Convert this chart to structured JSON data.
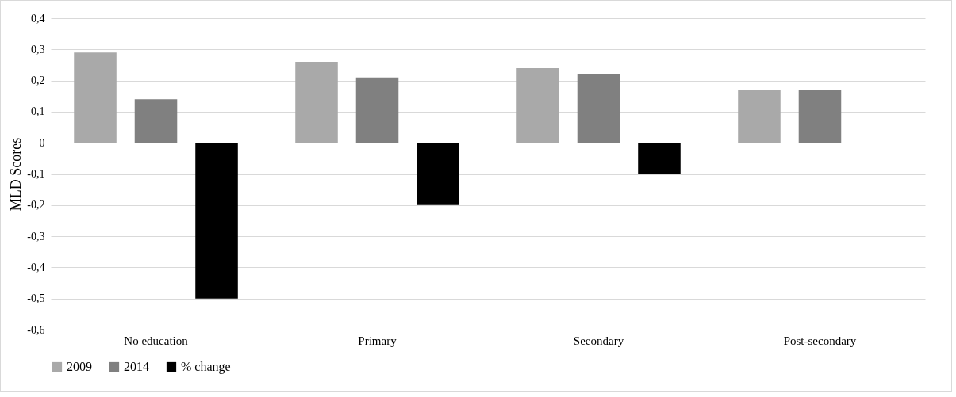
{
  "chart_data": {
    "type": "bar",
    "ylabel": "MLD Scores",
    "categories": [
      "No education",
      "Primary",
      "Secondary",
      "Post-secondary"
    ],
    "series": [
      {
        "name": "2009",
        "color": "#a9a9a9",
        "values": [
          0.29,
          0.26,
          0.24,
          0.17
        ]
      },
      {
        "name": "2014",
        "color": "#808080",
        "values": [
          0.14,
          0.21,
          0.22,
          0.17
        ]
      },
      {
        "name": "% change",
        "color": "#000000",
        "values": [
          -0.5,
          -0.2,
          -0.1,
          null
        ]
      }
    ],
    "ylim": [
      -0.6,
      0.4
    ],
    "yticks": [
      {
        "value": -0.6,
        "label": "-0,6"
      },
      {
        "value": -0.5,
        "label": "-0,5"
      },
      {
        "value": -0.4,
        "label": "-0,4"
      },
      {
        "value": -0.3,
        "label": "-0,3"
      },
      {
        "value": -0.2,
        "label": "-0,2"
      },
      {
        "value": -0.1,
        "label": "-0,1"
      },
      0,
      {
        "value": 0.1,
        "label": "0,1"
      },
      {
        "value": 0.2,
        "label": "0,2"
      },
      {
        "value": 0.3,
        "label": "0,3"
      },
      {
        "value": 0.4,
        "label": "0,4"
      }
    ],
    "grid": "y",
    "legend": "bottom"
  }
}
